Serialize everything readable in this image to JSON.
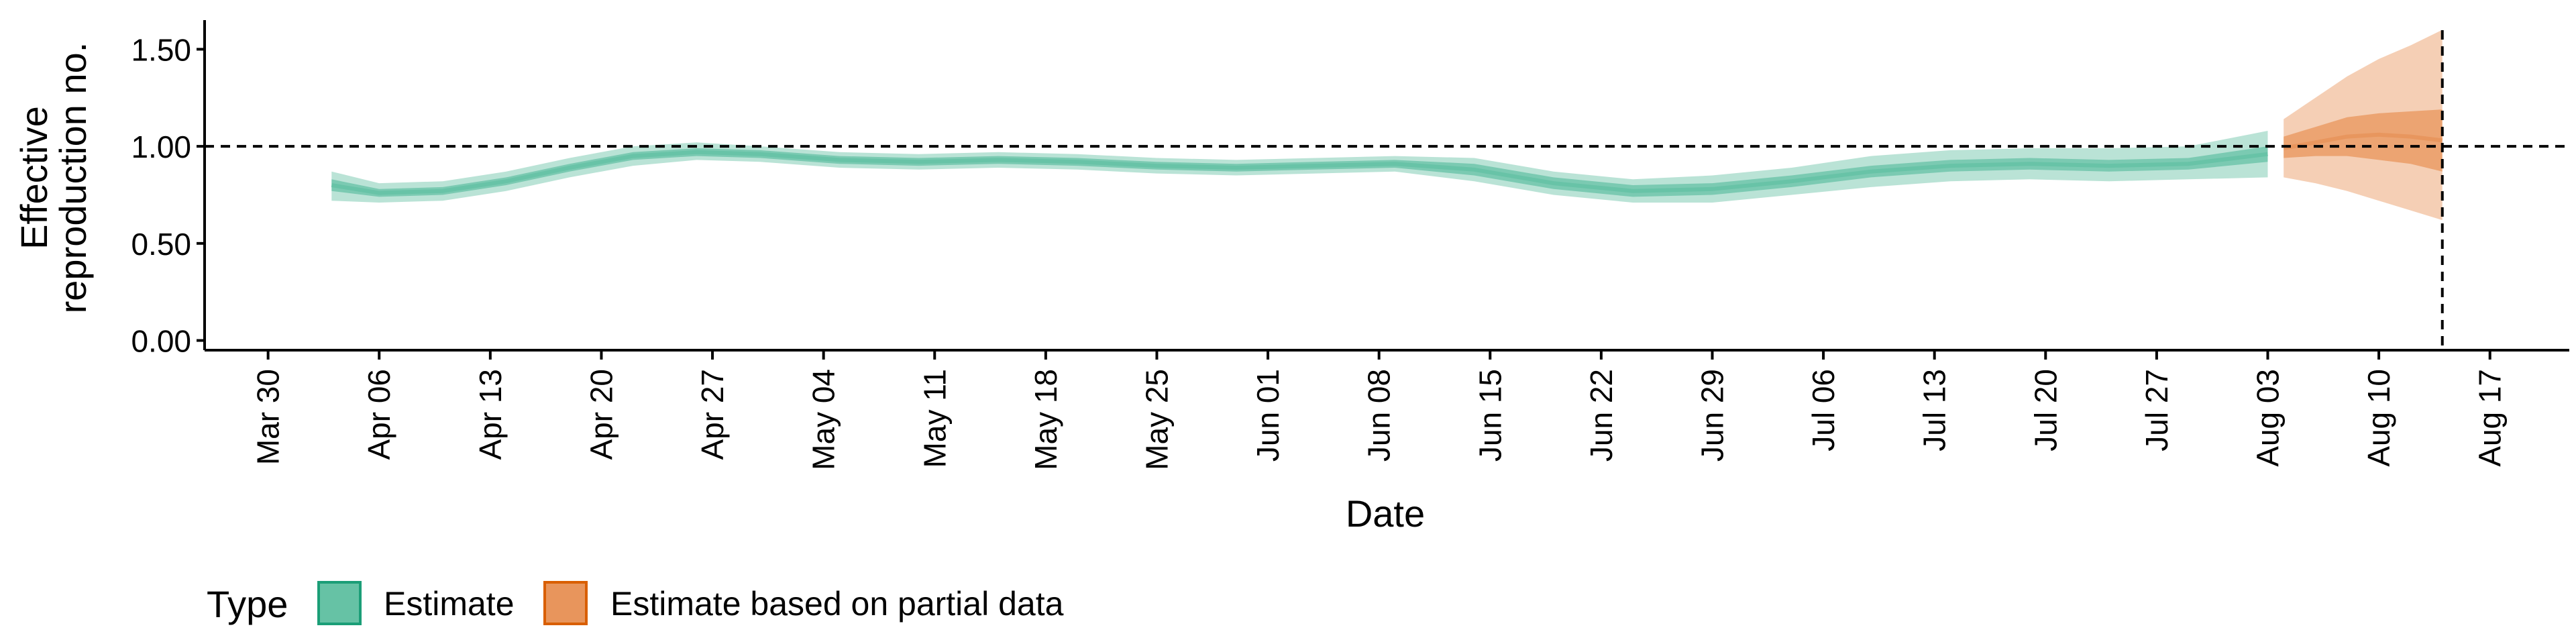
{
  "chart_data": {
    "type": "area",
    "xlabel": "Date",
    "ylabel_lines": [
      "Effective",
      "reproduction no."
    ],
    "yticks": [
      "0.00",
      "0.50",
      "1.00",
      "1.50"
    ],
    "ylim": [
      -0.05,
      1.65
    ],
    "xlim": [
      "2020-03-26",
      "2020-08-22"
    ],
    "xtick_dates": [
      "2020-03-30",
      "2020-04-06",
      "2020-04-13",
      "2020-04-20",
      "2020-04-27",
      "2020-05-04",
      "2020-05-11",
      "2020-05-18",
      "2020-05-25",
      "2020-06-01",
      "2020-06-08",
      "2020-06-15",
      "2020-06-22",
      "2020-06-29",
      "2020-07-06",
      "2020-07-13",
      "2020-07-20",
      "2020-07-27",
      "2020-08-03",
      "2020-08-10",
      "2020-08-17"
    ],
    "xtick_labels": [
      "Mar 30",
      "Apr 06",
      "Apr 13",
      "Apr 20",
      "Apr 27",
      "May 04",
      "May 11",
      "May 18",
      "May 25",
      "Jun 01",
      "Jun 08",
      "Jun 15",
      "Jun 22",
      "Jun 29",
      "Jul 06",
      "Jul 13",
      "Jul 20",
      "Jul 27",
      "Aug 03",
      "Aug 10",
      "Aug 17"
    ],
    "reference_hline": 1.0,
    "reference_vline": "2020-08-14",
    "grid": false,
    "legend": {
      "position": "bottom-left",
      "title": "Type",
      "entries": [
        "Estimate",
        "Estimate based on partial data"
      ]
    },
    "colors": {
      "estimate_fill": "#66c2a5",
      "estimate_border": "#1b9e77",
      "partial_fill": "#e8955c",
      "partial_border": "#d95f02"
    },
    "series": [
      {
        "name": "Estimate",
        "x": [
          "2020-04-03",
          "2020-04-06",
          "2020-04-10",
          "2020-04-14",
          "2020-04-18",
          "2020-04-22",
          "2020-04-26",
          "2020-04-30",
          "2020-05-05",
          "2020-05-10",
          "2020-05-15",
          "2020-05-20",
          "2020-05-25",
          "2020-05-30",
          "2020-06-04",
          "2020-06-09",
          "2020-06-14",
          "2020-06-19",
          "2020-06-24",
          "2020-06-29",
          "2020-07-04",
          "2020-07-09",
          "2020-07-14",
          "2020-07-19",
          "2020-07-24",
          "2020-07-29",
          "2020-08-03"
        ],
        "median": [
          0.8,
          0.76,
          0.77,
          0.82,
          0.89,
          0.95,
          0.97,
          0.96,
          0.93,
          0.92,
          0.93,
          0.92,
          0.9,
          0.89,
          0.9,
          0.91,
          0.88,
          0.81,
          0.77,
          0.78,
          0.82,
          0.87,
          0.9,
          0.91,
          0.9,
          0.91,
          0.96
        ],
        "lower_50": [
          0.77,
          0.74,
          0.75,
          0.8,
          0.87,
          0.93,
          0.95,
          0.94,
          0.91,
          0.9,
          0.91,
          0.9,
          0.88,
          0.87,
          0.88,
          0.89,
          0.85,
          0.78,
          0.74,
          0.75,
          0.79,
          0.84,
          0.87,
          0.88,
          0.87,
          0.88,
          0.92
        ],
        "upper_50": [
          0.83,
          0.78,
          0.79,
          0.84,
          0.91,
          0.97,
          0.99,
          0.98,
          0.95,
          0.94,
          0.95,
          0.94,
          0.92,
          0.91,
          0.92,
          0.93,
          0.91,
          0.84,
          0.8,
          0.81,
          0.85,
          0.9,
          0.93,
          0.94,
          0.93,
          0.94,
          1.0
        ],
        "lower_90": [
          0.72,
          0.71,
          0.72,
          0.77,
          0.84,
          0.9,
          0.93,
          0.92,
          0.89,
          0.88,
          0.89,
          0.88,
          0.86,
          0.85,
          0.86,
          0.87,
          0.82,
          0.75,
          0.71,
          0.71,
          0.75,
          0.79,
          0.82,
          0.83,
          0.82,
          0.83,
          0.84
        ],
        "upper_90": [
          0.87,
          0.81,
          0.82,
          0.87,
          0.94,
          1.0,
          1.02,
          1.0,
          0.97,
          0.96,
          0.97,
          0.96,
          0.94,
          0.93,
          0.94,
          0.95,
          0.94,
          0.87,
          0.83,
          0.85,
          0.89,
          0.95,
          0.98,
          0.99,
          0.99,
          1.0,
          1.08
        ]
      },
      {
        "name": "Estimate based on partial data",
        "x": [
          "2020-08-04",
          "2020-08-06",
          "2020-08-08",
          "2020-08-10",
          "2020-08-12",
          "2020-08-14"
        ],
        "median": [
          0.99,
          1.02,
          1.05,
          1.06,
          1.05,
          1.03
        ],
        "lower_50": [
          0.94,
          0.95,
          0.95,
          0.93,
          0.91,
          0.87
        ],
        "upper_50": [
          1.05,
          1.1,
          1.15,
          1.17,
          1.18,
          1.19
        ],
        "lower_90": [
          0.84,
          0.81,
          0.77,
          0.72,
          0.67,
          0.62
        ],
        "upper_90": [
          1.14,
          1.25,
          1.36,
          1.45,
          1.52,
          1.6
        ]
      }
    ]
  }
}
